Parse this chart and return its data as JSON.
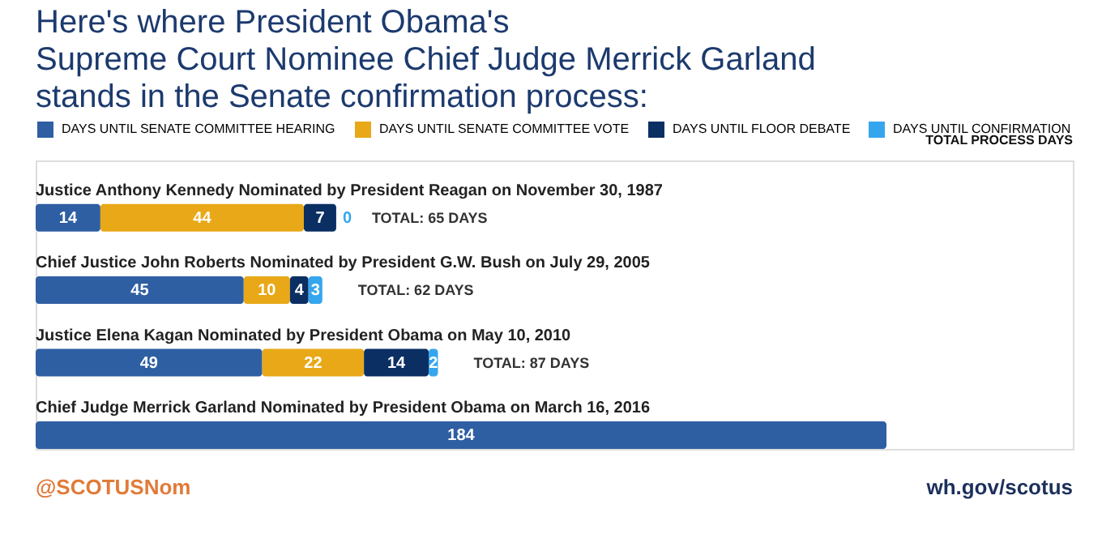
{
  "chart_data": {
    "type": "bar",
    "orientation": "horizontal",
    "stacked": true,
    "data_labels": true,
    "legend": "top",
    "grid": false,
    "tick_labels": false,
    "title": "Here's where President Obama's\nSupreme Court Nominee Chief Judge Merrick Garland\nstands in the Senate confirmation process:",
    "categories": [
      "Justice Anthony Kennedy Nominated by President Reagan on November 30, 1987",
      "Chief Justice John Roberts Nominated by President G.W. Bush on July 29, 2005",
      "Justice Elena Kagan Nominated by President Obama on May 10, 2010",
      "Chief Judge Merrick Garland Nominated by President Obama on March 16, 2016"
    ],
    "series": [
      {
        "name": "DAYS UNTIL SENATE COMMITTEE HEARING",
        "color": "#2f5fa3",
        "values": [
          14,
          45,
          49,
          184
        ]
      },
      {
        "name": "DAYS UNTIL SENATE COMMITTEE VOTE",
        "color": "#e8a817",
        "values": [
          44,
          10,
          22,
          null
        ]
      },
      {
        "name": "DAYS UNTIL FLOOR DEBATE",
        "color": "#0b2f63",
        "values": [
          7,
          4,
          14,
          null
        ]
      },
      {
        "name": "DAYS UNTIL CONFIRMATION",
        "color": "#35a6ee",
        "values": [
          0,
          3,
          2,
          null
        ]
      }
    ],
    "totals": [
      "TOTAL: 65 DAYS",
      "TOTAL: 62 DAYS",
      "TOTAL: 87 DAYS",
      null
    ],
    "annotations": [
      "TOTAL PROCESS DAYS",
      "@SCOTUSNom",
      "wh.gov/scotus"
    ]
  }
}
